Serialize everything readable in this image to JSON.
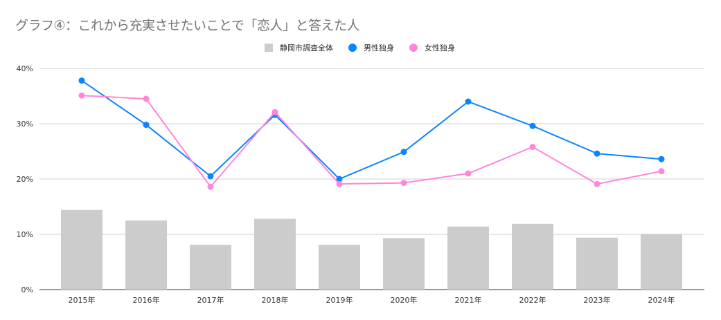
{
  "chart_data": {
    "type": "bar+line",
    "title": "グラフ④：これから充実させたいことで「恋人」と答えた人",
    "categories": [
      "2015年",
      "2016年",
      "2017年",
      "2018年",
      "2019年",
      "2020年",
      "2021年",
      "2022年",
      "2023年",
      "2024年"
    ],
    "ylim": [
      0,
      40
    ],
    "yticks": [
      "0%",
      "10%",
      "20%",
      "30%",
      "40%"
    ],
    "ytick_values": [
      0,
      10,
      20,
      30,
      40
    ],
    "grid": true,
    "legend_position": "top-center",
    "series": [
      {
        "name": "静岡市調査全体",
        "type": "bar",
        "color": "#cccccc",
        "values": [
          14.4,
          12.5,
          8.1,
          12.8,
          8.1,
          9.3,
          11.4,
          11.9,
          9.4,
          10.0
        ]
      },
      {
        "name": "男性独身",
        "type": "line",
        "color": "#0a84ff",
        "values": [
          37.8,
          29.8,
          20.5,
          31.6,
          20.0,
          24.9,
          34.0,
          29.6,
          24.6,
          23.6
        ]
      },
      {
        "name": "女性独身",
        "type": "line",
        "color": "#ff85dd",
        "values": [
          35.1,
          34.5,
          18.6,
          32.1,
          19.1,
          19.3,
          21.0,
          25.8,
          19.1,
          21.4
        ]
      }
    ]
  }
}
